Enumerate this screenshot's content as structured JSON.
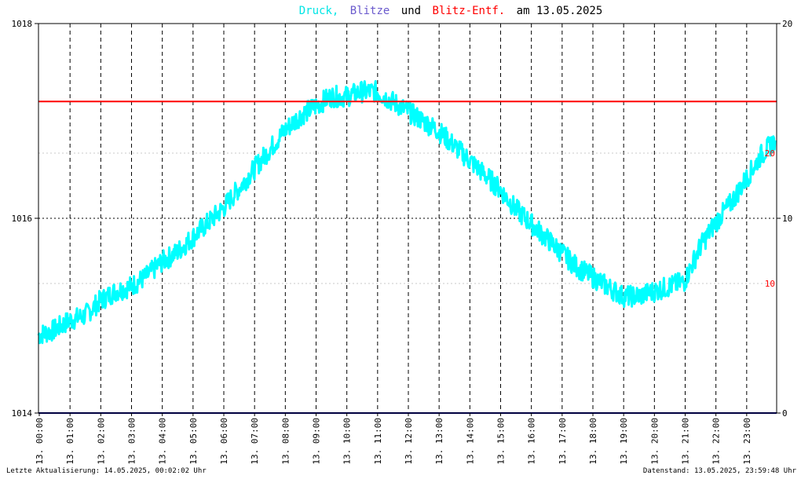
{
  "title": {
    "druck": "Druck,",
    "blitze": "Blitze",
    "und": "und",
    "entf": "Blitz-Entf.",
    "am": "am 13.05.2025"
  },
  "footer": {
    "left": "Letzte Aktualisierung: 14.05.2025, 00:02:02 Uhr",
    "right": "Datenstand: 13.05.2025, 23:59:48 Uhr"
  },
  "colors": {
    "druck": "#00ffff",
    "blitze": "#6a5acd",
    "entf": "#ff0000",
    "baseline": "#000080",
    "frame": "#000000"
  },
  "chart_data": {
    "type": "line",
    "grid": true,
    "x_ticks": [
      "13. 00:00",
      "13. 01:00",
      "13. 02:00",
      "13. 03:00",
      "13. 04:00",
      "13. 05:00",
      "13. 06:00",
      "13. 07:00",
      "13. 08:00",
      "13. 09:00",
      "13. 10:00",
      "13. 11:00",
      "13. 12:00",
      "13. 13:00",
      "13. 14:00",
      "13. 15:00",
      "13. 16:00",
      "13. 17:00",
      "13. 18:00",
      "13. 19:00",
      "13. 20:00",
      "13. 21:00",
      "13. 22:00",
      "13. 23:00"
    ],
    "y_left": {
      "ylim": [
        1014,
        1018
      ],
      "ticks": [
        "1014",
        "1016",
        "1018"
      ]
    },
    "y_right_outer": {
      "ylim": [
        0,
        20
      ],
      "ticks": [
        "0",
        "10",
        "20"
      ]
    },
    "y_right_inner": {
      "ticks": [
        "10",
        "20"
      ],
      "tick_values": [
        10,
        20
      ]
    },
    "series": [
      {
        "name": "Druck",
        "axis": "left",
        "x_hours": [
          0,
          0.5,
          1,
          1.5,
          2,
          2.5,
          3,
          3.5,
          4,
          4.5,
          5,
          5.5,
          6,
          6.5,
          7,
          7.5,
          8,
          8.5,
          9,
          9.5,
          10,
          10.5,
          11,
          11.5,
          12,
          12.5,
          13,
          13.5,
          14,
          14.5,
          15,
          15.5,
          16,
          16.5,
          17,
          17.5,
          18,
          18.5,
          19,
          19.5,
          20,
          20.5,
          21,
          21.5,
          22,
          22.5,
          23,
          23.5,
          23.95
        ],
        "values": [
          1014.8,
          1014.85,
          1014.95,
          1015.0,
          1015.15,
          1015.25,
          1015.3,
          1015.4,
          1015.55,
          1015.65,
          1015.8,
          1015.95,
          1016.1,
          1016.3,
          1016.5,
          1016.7,
          1016.9,
          1017.05,
          1017.15,
          1017.25,
          1017.25,
          1017.3,
          1017.3,
          1017.2,
          1017.1,
          1017.0,
          1016.9,
          1016.75,
          1016.6,
          1016.45,
          1016.3,
          1016.1,
          1015.95,
          1015.8,
          1015.65,
          1015.5,
          1015.4,
          1015.3,
          1015.2,
          1015.2,
          1015.25,
          1015.3,
          1015.35,
          1015.7,
          1015.95,
          1016.15,
          1016.4,
          1016.65,
          1016.8
        ]
      },
      {
        "name": "Blitze",
        "axis": "right",
        "values": []
      },
      {
        "name": "Blitz-Entf.",
        "axis": "right",
        "constant_value": 16
      }
    ]
  }
}
